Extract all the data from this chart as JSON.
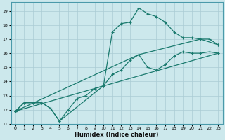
{
  "xlabel": "Humidex (Indice chaleur)",
  "bg_color": "#cce8ec",
  "grid_color": "#aaccd4",
  "line_color": "#1a7a6e",
  "xlim": [
    -0.5,
    23.5
  ],
  "ylim": [
    11,
    19.6
  ],
  "xticks": [
    0,
    1,
    2,
    3,
    4,
    5,
    6,
    7,
    8,
    9,
    10,
    11,
    12,
    13,
    14,
    15,
    16,
    17,
    18,
    19,
    20,
    21,
    22,
    23
  ],
  "yticks": [
    11,
    12,
    13,
    14,
    15,
    16,
    17,
    18,
    19
  ],
  "series1_x": [
    0,
    1,
    2,
    3,
    4,
    5,
    6,
    7,
    8,
    9,
    10,
    11,
    12,
    13,
    14,
    15,
    16,
    17,
    18,
    19,
    20,
    21,
    22,
    23
  ],
  "series1_y": [
    11.9,
    12.5,
    12.5,
    12.5,
    12.1,
    11.2,
    12.0,
    12.8,
    13.0,
    13.5,
    13.7,
    14.5,
    14.8,
    15.5,
    15.9,
    15.0,
    14.8,
    15.2,
    15.8,
    16.1,
    16.0,
    16.0,
    16.1,
    16.0
  ],
  "series2_x": [
    0,
    1,
    2,
    3,
    4,
    5,
    10,
    11,
    12,
    13,
    14,
    15,
    16,
    17,
    18,
    19,
    20,
    21,
    22,
    23
  ],
  "series2_y": [
    11.9,
    12.5,
    12.5,
    12.5,
    12.1,
    11.2,
    13.7,
    17.5,
    18.1,
    18.2,
    19.2,
    18.8,
    18.6,
    18.2,
    17.5,
    17.1,
    17.1,
    17.0,
    17.0,
    16.6
  ],
  "series3_x": [
    0,
    23
  ],
  "series3_y": [
    11.9,
    16.0
  ],
  "series4_x": [
    0,
    14,
    21,
    23
  ],
  "series4_y": [
    11.9,
    15.9,
    17.0,
    16.6
  ]
}
